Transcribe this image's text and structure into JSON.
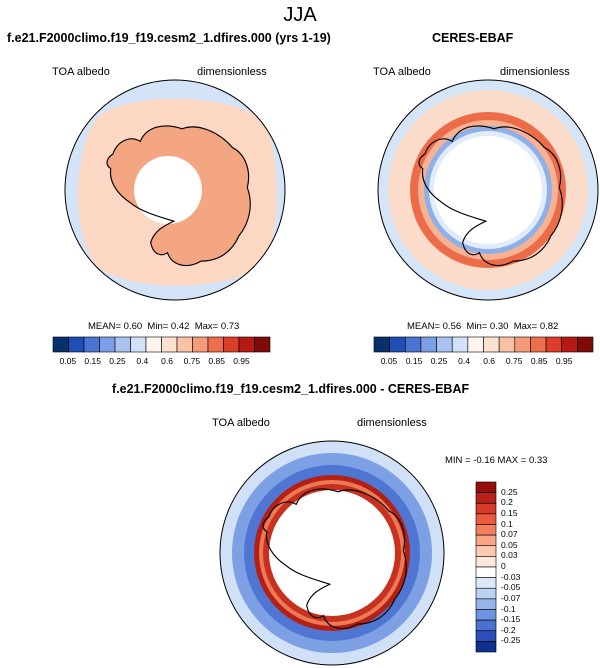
{
  "title": "JJA",
  "chart_data": [
    {
      "type": "heatmap",
      "title": "f.e21.F2000climo.f19_f19.cesm2_1.dfires.000 (yrs 1-19)",
      "left_label": "TOA albedo",
      "right_label": "dimensionless",
      "stats": {
        "mean_label": "MEAN=",
        "mean": "0.60",
        "min_label": "Min=",
        "min": "0.42",
        "max_label": "Max=",
        "max": "0.73"
      },
      "colorbar_ticks": [
        "0.05",
        "0.15",
        "0.25",
        "0.4",
        "0.6",
        "0.75",
        "0.85",
        "0.95"
      ]
    },
    {
      "type": "heatmap",
      "title": "CERES-EBAF",
      "left_label": "TOA albedo",
      "right_label": "dimensionless",
      "stats": {
        "mean_label": "MEAN=",
        "mean": "0.56",
        "min_label": "Min=",
        "min": "0.30",
        "max_label": "Max=",
        "max": "0.82"
      },
      "colorbar_ticks": [
        "0.05",
        "0.15",
        "0.25",
        "0.4",
        "0.6",
        "0.75",
        "0.85",
        "0.95"
      ]
    },
    {
      "type": "heatmap",
      "title": "f.e21.F2000climo.f19_f19.cesm2_1.dfires.000 - CERES-EBAF",
      "left_label": "TOA albedo",
      "right_label": "dimensionless",
      "minmax_text": "MIN = -0.16 MAX =  0.33",
      "colorbar_ticks": [
        "0.25",
        "0.2",
        "0.15",
        "0.1",
        "0.07",
        "0.05",
        "0.03",
        "0",
        "-0.03",
        "-0.05",
        "-0.07",
        "-0.1",
        "-0.15",
        "-0.2",
        "-0.25"
      ]
    }
  ],
  "colors": {
    "hbar": [
      "#08306b",
      "#1f4eb4",
      "#4a74d4",
      "#7b9ee4",
      "#a9c2ef",
      "#d2e1f7",
      "#fff5ee",
      "#fde2d2",
      "#f9c2a6",
      "#f49c79",
      "#ed6e4c",
      "#dc3d28",
      "#b41a13",
      "#7f0b08"
    ],
    "vbar": [
      "#960e0b",
      "#b82117",
      "#d73a27",
      "#ea5a3d",
      "#f47f5f",
      "#f9a585",
      "#fcc9b1",
      "#fde7da",
      "#ffffff",
      "#dde9fb",
      "#bcd2f5",
      "#96b5ec",
      "#6f94e0",
      "#4b72d0",
      "#2b4eb8",
      "#10308f"
    ],
    "ocean_light": "#d3e4f8",
    "salmon": "#f9c8b0",
    "coast": "#000000"
  }
}
